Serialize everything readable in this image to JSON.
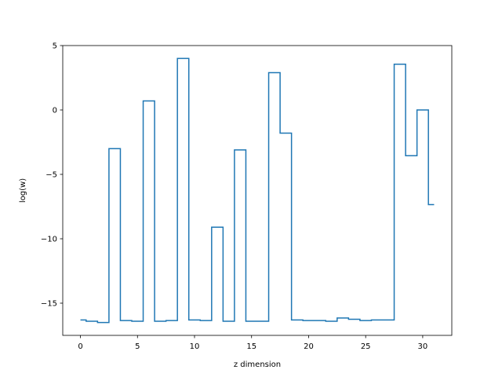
{
  "chart_data": {
    "type": "line",
    "drawstyle": "steps-mid",
    "xlabel": "z dimension",
    "ylabel": "log(w)",
    "xlim": [
      -1.55,
      32.55
    ],
    "ylim": [
      -17.5,
      5
    ],
    "xticks": [
      0,
      5,
      10,
      15,
      20,
      25,
      30
    ],
    "yticks": [
      5,
      0,
      -5,
      -10,
      -15
    ],
    "grid": false,
    "line_color": "#1f77b4",
    "series": [
      {
        "x": [
          0,
          1,
          2,
          3,
          4,
          5,
          6,
          7,
          8,
          9,
          10,
          11,
          12,
          13,
          14,
          15,
          16,
          17,
          18,
          19,
          20,
          21,
          22,
          23,
          24,
          25,
          26,
          27,
          28,
          29,
          30,
          31
        ],
        "values": [
          -16.3,
          -16.4,
          -16.5,
          -3.0,
          -16.35,
          -16.4,
          0.7,
          -16.4,
          -16.35,
          4.0,
          -16.3,
          -16.35,
          -9.1,
          -16.4,
          -3.1,
          -16.4,
          -16.4,
          2.9,
          -1.8,
          -16.3,
          -16.35,
          -16.35,
          -16.4,
          -16.15,
          -16.25,
          -16.35,
          -16.3,
          -16.3,
          3.55,
          -3.55,
          0.0,
          -7.35
        ]
      }
    ]
  }
}
